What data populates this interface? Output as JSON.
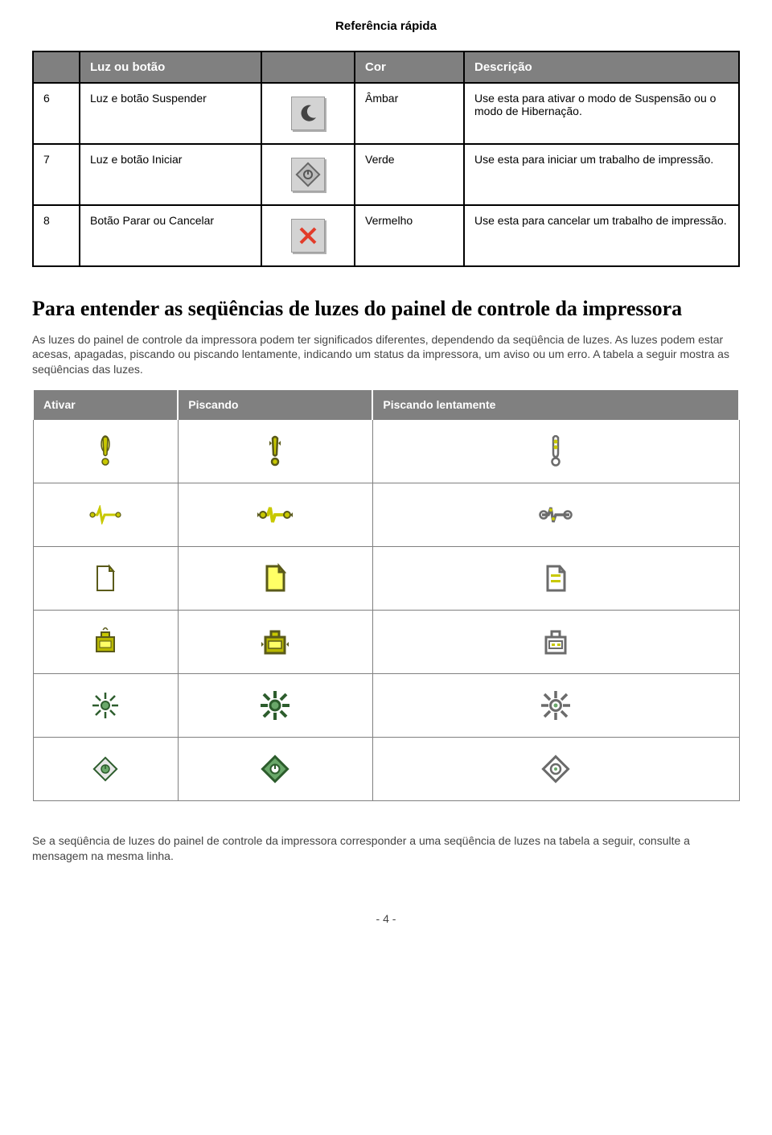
{
  "page_title": "Referência rápida",
  "table1": {
    "headers": [
      "",
      "Luz ou botão",
      "",
      "Cor",
      "Descrição"
    ],
    "rows": [
      {
        "num": "6",
        "label": "Luz e botão Suspender",
        "icon": "moon",
        "color": "Âmbar",
        "desc": "Use esta para ativar o modo de Suspensão ou o modo de Hibernação."
      },
      {
        "num": "7",
        "label": "Luz e botão Iniciar",
        "icon": "diamond-start",
        "color": "Verde",
        "desc": "Use esta para iniciar um trabalho de impressão."
      },
      {
        "num": "8",
        "label": "Botão Parar ou Cancelar",
        "icon": "cancel-x",
        "color": "Vermelho",
        "desc": "Use esta para cancelar um trabalho de impressão."
      }
    ]
  },
  "section_heading": "Para entender as seqüências de luzes do painel de controle da impressora",
  "section_para": "As luzes do painel de controle da impressora podem ter significados diferentes, dependendo da seqüência de luzes. As luzes podem estar acesas, apagadas, piscando ou piscando lentamente, indicando um status da impressora, um aviso ou um erro. A tabela a seguir mostra as seqüências das luzes.",
  "table2": {
    "headers": [
      "Ativar",
      "Piscando",
      "Piscando lentamente"
    ],
    "row_icons": [
      [
        "exclaim-on",
        "exclaim-blink",
        "exclaim-slow"
      ],
      [
        "jam-on",
        "jam-blink",
        "jam-slow"
      ],
      [
        "paper-on",
        "paper-blink",
        "paper-slow"
      ],
      [
        "toner-on",
        "toner-blink",
        "toner-slow"
      ],
      [
        "ready-on",
        "ready-blink",
        "ready-slow"
      ],
      [
        "diamond-on",
        "diamond-blink",
        "diamond-slow"
      ]
    ]
  },
  "footer_para": "Se a seqüência de luzes do painel de controle da impressora corresponder a uma seqüência de luzes na tabela a seguir, consulte a mensagem na mesma linha.",
  "page_num": "- 4 -",
  "colors": {
    "yellow": "#c8c800",
    "yellow_light": "#ffff66",
    "outline": "#5a5a1a",
    "toner_body": "#b8b800",
    "green_dark": "#2d5d2d",
    "green_light": "#6aa86a",
    "gray_outline": "#6b6b6b",
    "gray_fill": "#bdbdbd",
    "red": "#e23c2a"
  }
}
